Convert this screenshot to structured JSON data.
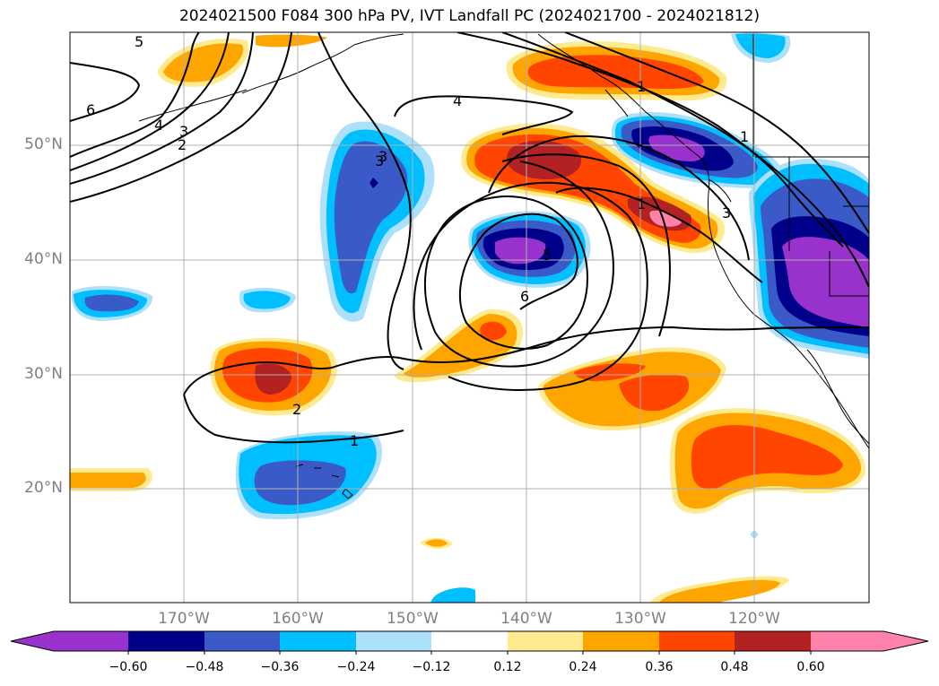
{
  "title": "2024021500 F084 300 hPa PV, IVT Landfall PC (2024021700 - 2024021812)",
  "lat_labels": [
    "50°N",
    "40°N",
    "30°N",
    "20°N"
  ],
  "lon_labels": [
    "170°W",
    "160°W",
    "150°W",
    "140°W",
    "130°W",
    "120°W"
  ],
  "contour_labels": [
    "5",
    "6",
    "4",
    "3",
    "2",
    "3",
    "4",
    "1",
    "3",
    "6",
    "5",
    "1",
    "3",
    "1",
    "2",
    "1"
  ],
  "colorbar": {
    "levels": [
      "−0.60",
      "−0.48",
      "−0.36",
      "−0.24",
      "−0.12",
      "0.12",
      "0.24",
      "0.36",
      "0.48",
      "0.60"
    ],
    "colors": [
      "#9932CC",
      "#00008B",
      "#3A5BC7",
      "#00BFFF",
      "#ADE0FA",
      "#FFFFFF",
      "#FFEB8F",
      "#FFA500",
      "#FF4500",
      "#B22222",
      "#FF82AB"
    ]
  }
}
